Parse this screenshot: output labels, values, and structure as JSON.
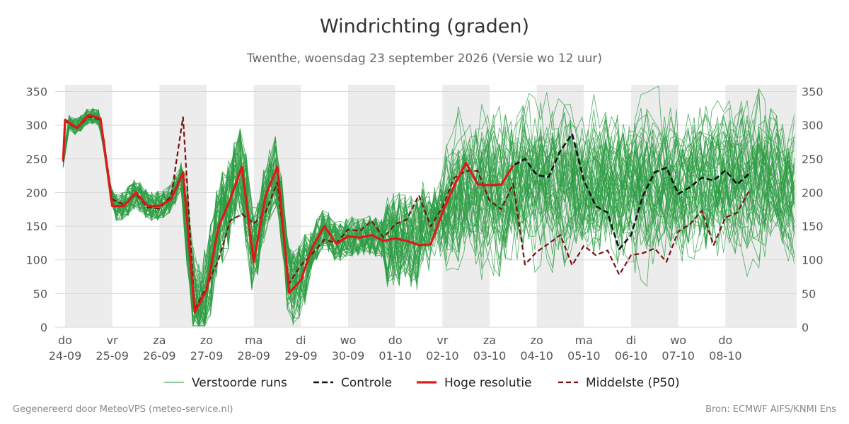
{
  "title": "Windrichting (graden)",
  "subtitle": "Twenthe, woensdag 23 september 2026 (Versie wo 12 uur)",
  "footer_left": "Gegenereerd door MeteoVPS (meteo-service.nl)",
  "footer_right": "Bron: ECMWF AIFS/KNMI Ens",
  "colors": {
    "ensemble": "#2e9e44",
    "control": "#111111",
    "high_res": "#e01818",
    "median": "#7a1010",
    "night_band": "#ececec",
    "grid": "#d9d9d9"
  },
  "chart_data": {
    "type": "line",
    "x_unit": "days",
    "xlim": [
      23.79,
      39.51
    ],
    "ylim": [
      0,
      360
    ],
    "yticks": [
      0,
      50,
      100,
      150,
      200,
      250,
      300,
      350
    ],
    "grid": "horizontal",
    "legend_placement": "bottom",
    "shaded_intervals": [
      [
        24.0,
        25.0
      ],
      [
        26.0,
        27.0
      ],
      [
        28.0,
        29.0
      ],
      [
        30.0,
        31.0
      ],
      [
        32.0,
        33.0
      ],
      [
        34.0,
        35.0
      ],
      [
        36.0,
        37.0
      ],
      [
        38.0,
        39.51
      ]
    ],
    "x_ticks": [
      {
        "day": "do",
        "date": "24-09",
        "x": 24
      },
      {
        "day": "vr",
        "date": "25-09",
        "x": 25
      },
      {
        "day": "za",
        "date": "26-09",
        "x": 26
      },
      {
        "day": "zo",
        "date": "27-09",
        "x": 27
      },
      {
        "day": "ma",
        "date": "28-09",
        "x": 28
      },
      {
        "day": "di",
        "date": "29-09",
        "x": 29
      },
      {
        "day": "wo",
        "date": "30-09",
        "x": 30
      },
      {
        "day": "do",
        "date": "01-10",
        "x": 31
      },
      {
        "day": "vr",
        "date": "02-10",
        "x": 32
      },
      {
        "day": "za",
        "date": "03-10",
        "x": 33
      },
      {
        "day": "zo",
        "date": "04-10",
        "x": 34
      },
      {
        "day": "ma",
        "date": "05-10",
        "x": 35
      },
      {
        "day": "di",
        "date": "06-10",
        "x": 36
      },
      {
        "day": "wo",
        "date": "07-10",
        "x": 37
      },
      {
        "day": "do",
        "date": "08-10",
        "x": 38
      }
    ],
    "legend": [
      {
        "label": "Verstoorde runs",
        "style": "thin"
      },
      {
        "label": "Controle",
        "style": "dashed-bold"
      },
      {
        "label": "Hoge resolutie",
        "style": "solid-bold"
      },
      {
        "label": "Middelste (P50)",
        "style": "dashed"
      }
    ],
    "series": [
      {
        "name": "Hoge resolutie",
        "x": [
          23.96,
          24.0,
          24.25,
          24.5,
          24.75,
          25.0,
          25.25,
          25.5,
          25.75,
          26.0,
          26.25,
          26.5,
          26.75,
          27.0,
          27.25,
          27.5,
          27.75,
          28.0,
          28.25,
          28.5,
          28.75,
          29.0,
          29.25,
          29.5,
          29.75,
          30.0,
          30.25,
          30.5,
          30.75,
          31.0,
          31.25,
          31.5,
          31.75,
          32.0,
          32.25,
          32.5,
          32.75,
          33.0,
          33.25,
          33.5
        ],
        "y": [
          248,
          308,
          296,
          315,
          310,
          180,
          180,
          200,
          180,
          180,
          190,
          230,
          22,
          55,
          148,
          190,
          238,
          97,
          195,
          238,
          51,
          70,
          120,
          150,
          124,
          135,
          133,
          137,
          128,
          132,
          128,
          122,
          123,
          170,
          210,
          244,
          212,
          211,
          212,
          240
        ]
      },
      {
        "name": "Controle",
        "x": [
          23.96,
          24.0,
          24.25,
          24.5,
          24.75,
          25.0,
          25.25,
          25.5,
          25.75,
          26.0,
          26.25,
          26.5,
          26.75,
          27.0,
          27.25,
          27.5,
          27.75,
          28.0,
          28.25,
          28.5,
          28.75,
          29.0,
          29.25,
          29.5,
          29.75,
          30.0,
          30.25,
          30.5,
          30.75,
          31.0,
          31.25,
          31.5,
          31.75,
          32.0,
          32.25,
          32.5,
          32.75,
          33.0,
          33.25,
          33.5,
          33.75,
          34.0,
          34.25,
          34.5,
          34.75,
          35.0,
          35.25,
          35.5,
          35.75,
          36.0,
          36.25,
          36.5,
          36.75,
          37.0,
          37.25,
          37.5,
          37.75,
          38.0,
          38.25,
          38.5
        ],
        "y": [
          250,
          308,
          296,
          315,
          310,
          180,
          180,
          200,
          180,
          180,
          190,
          230,
          22,
          55,
          148,
          190,
          238,
          97,
          195,
          238,
          51,
          70,
          120,
          150,
          124,
          135,
          133,
          137,
          128,
          132,
          128,
          122,
          123,
          170,
          210,
          244,
          212,
          211,
          212,
          240,
          250,
          226,
          223,
          262,
          287,
          218,
          180,
          170,
          116,
          137,
          195,
          230,
          237,
          198,
          208,
          222,
          218,
          233,
          212,
          228
        ]
      },
      {
        "name": "Middelste (P50)",
        "x": [
          23.96,
          24.0,
          24.25,
          24.5,
          24.75,
          25.0,
          25.25,
          25.5,
          25.75,
          26.0,
          26.25,
          26.5,
          26.75,
          27.0,
          27.25,
          27.5,
          27.75,
          28.0,
          28.25,
          28.5,
          28.75,
          29.0,
          29.25,
          29.5,
          29.75,
          30.0,
          30.25,
          30.5,
          30.75,
          31.0,
          31.25,
          31.5,
          31.75,
          32.0,
          32.25,
          32.5,
          32.75,
          33.0,
          33.25,
          33.5,
          33.75,
          34.0,
          34.25,
          34.5,
          34.75,
          35.0,
          35.25,
          35.5,
          35.75,
          36.0,
          36.25,
          36.5,
          36.75,
          37.0,
          37.25,
          37.5,
          37.75,
          38.0,
          38.25,
          38.5
        ],
        "y": [
          246,
          306,
          295,
          313,
          308,
          190,
          182,
          198,
          178,
          176,
          195,
          312,
          26,
          60,
          100,
          158,
          168,
          154,
          170,
          215,
          65,
          92,
          110,
          130,
          125,
          145,
          143,
          158,
          133,
          153,
          160,
          196,
          150,
          178,
          222,
          232,
          232,
          188,
          175,
          213,
          93,
          112,
          124,
          137,
          92,
          121,
          107,
          114,
          78,
          107,
          110,
          117,
          97,
          142,
          153,
          173,
          122,
          163,
          170,
          202
        ]
      }
    ]
  }
}
